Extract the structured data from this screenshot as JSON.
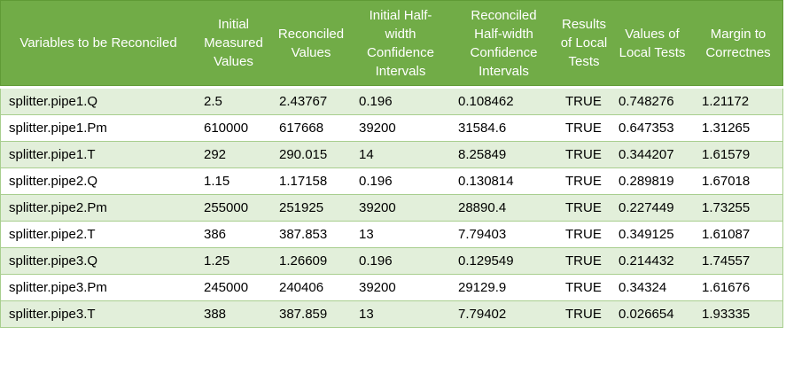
{
  "table": {
    "headers": [
      "Variables to be Reconciled",
      "Initial Measured Values",
      "Reconciled Values",
      "Initial Half-width Confidence Intervals",
      "Reconciled Half-width Confidence Intervals",
      "Results of Local Tests",
      "Values of Local Tests",
      "Margin to Correctnes"
    ],
    "rows": [
      [
        "splitter.pipe1.Q",
        "2.5",
        "2.43767",
        "0.196",
        "0.108462",
        "TRUE",
        "0.748276",
        "1.21172"
      ],
      [
        "splitter.pipe1.Pm",
        "610000",
        "617668",
        "39200",
        "31584.6",
        "TRUE",
        "0.647353",
        "1.31265"
      ],
      [
        "splitter.pipe1.T",
        "292",
        "290.015",
        "14",
        "8.25849",
        "TRUE",
        "0.344207",
        "1.61579"
      ],
      [
        "splitter.pipe2.Q",
        "1.15",
        "1.17158",
        "0.196",
        "0.130814",
        "TRUE",
        "0.289819",
        "1.67018"
      ],
      [
        "splitter.pipe2.Pm",
        "255000",
        "251925",
        "39200",
        "28890.4",
        "TRUE",
        "0.227449",
        "1.73255"
      ],
      [
        "splitter.pipe2.T",
        "386",
        "387.853",
        "13",
        "7.79403",
        "TRUE",
        "0.349125",
        "1.61087"
      ],
      [
        "splitter.pipe3.Q",
        "1.25",
        "1.26609",
        "0.196",
        "0.129549",
        "TRUE",
        "0.214432",
        "1.74557"
      ],
      [
        "splitter.pipe3.Pm",
        "245000",
        "240406",
        "39200",
        "29129.9",
        "TRUE",
        "0.34324",
        "1.61676"
      ],
      [
        "splitter.pipe3.T",
        "388",
        "387.859",
        "13",
        "7.79402",
        "TRUE",
        "0.026654",
        "1.93335"
      ]
    ]
  },
  "colors": {
    "header_bg": "#71AC47",
    "header_border": "#5F9A35",
    "header_text": "#FFFFFF",
    "row_alt_bg": "#E2EFDA",
    "row_border": "#A8CE8E",
    "body_text": "#000000"
  }
}
